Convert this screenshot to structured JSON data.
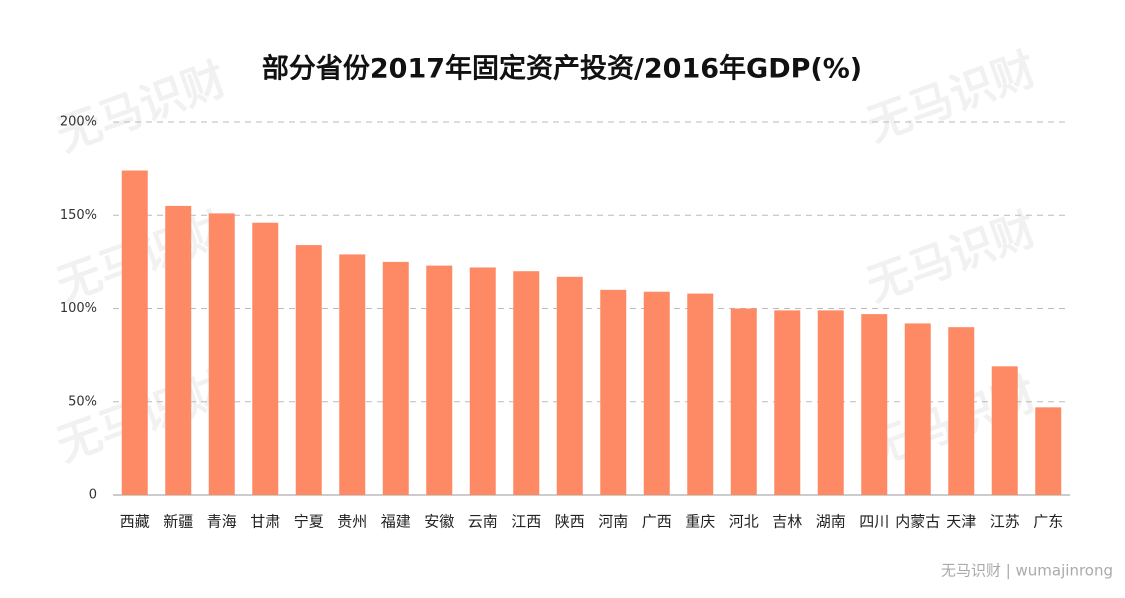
{
  "chart_data": {
    "type": "bar",
    "title": "部分省份2017年固定资产投资/2016年GDP(%)",
    "categories": [
      "西藏",
      "新疆",
      "青海",
      "甘肃",
      "宁夏",
      "贵州",
      "福建",
      "安徽",
      "云南",
      "江西",
      "陕西",
      "河南",
      "广西",
      "重庆",
      "河北",
      "吉林",
      "湖南",
      "四川",
      "内蒙古",
      "天津",
      "江苏",
      "广东"
    ],
    "values": [
      174,
      155,
      151,
      146,
      134,
      129,
      125,
      123,
      122,
      120,
      117,
      110,
      109,
      108,
      100,
      99,
      99,
      97,
      92,
      90,
      69,
      47
    ],
    "color": "#fe8a65",
    "ylim": [
      0,
      200
    ],
    "yticks": [
      0,
      {
        "value": 50,
        "label": "50%"
      },
      {
        "value": 100,
        "label": "100%"
      },
      {
        "value": 150,
        "label": "150%"
      },
      {
        "value": 200,
        "label": "200%"
      }
    ],
    "grid": true,
    "watermark": "无马识财",
    "footer": "无马识财 | wumajinrong"
  }
}
